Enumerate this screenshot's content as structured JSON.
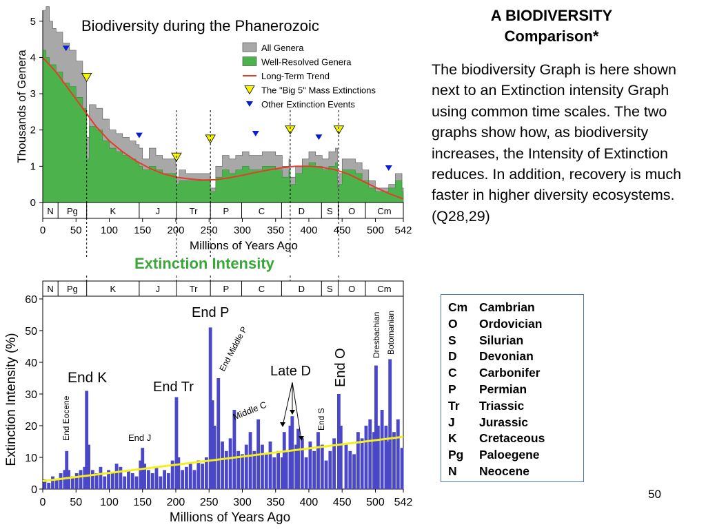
{
  "slide": {
    "title_line1": "A BIODIVERSITY",
    "title_line2": "Comparison*",
    "body": "The biodiversity Graph is here shown next to an Extinction intensity Graph using common time scales.  The two graphs show how, as biodiversity increases, the Intensity of Extinction reduces.  In addition, recovery is much faster in higher diversity ecosystems. (Q28,29)",
    "page_number": "50",
    "extinction_title": "Extinction Intensity"
  },
  "period_key": [
    {
      "abbr": "Cm",
      "name": "Cambrian"
    },
    {
      "abbr": "O",
      "name": "Ordovician"
    },
    {
      "abbr": "S",
      "name": "Silurian"
    },
    {
      "abbr": "D",
      "name": "Devonian"
    },
    {
      "abbr": "C",
      "name": "Carbonifer"
    },
    {
      "abbr": "P",
      "name": "Permian"
    },
    {
      "abbr": "Tr",
      "name": "Triassic"
    },
    {
      "abbr": "J",
      "name": "Jurassic"
    },
    {
      "abbr": "K",
      "name": "Cretaceous"
    },
    {
      "abbr": "Pg",
      "name": "Paloegene"
    },
    {
      "abbr": "N",
      "name": "Neocene"
    }
  ],
  "chart_data": [
    {
      "type": "area",
      "title": "Biodiversity during the Phanerozoic",
      "xlabel": "Millions of Years Ago",
      "ylabel": "Thousands of Genera",
      "xlim": [
        0,
        542
      ],
      "ylim": [
        0,
        5.3
      ],
      "x_reversed": false,
      "xticks": [
        0,
        50,
        100,
        150,
        200,
        250,
        300,
        350,
        400,
        450,
        500,
        542
      ],
      "yticks": [
        0,
        1,
        2,
        3,
        4,
        5
      ],
      "periods": [
        {
          "label": "N",
          "start": 0,
          "end": 23
        },
        {
          "label": "Pg",
          "start": 23,
          "end": 66
        },
        {
          "label": "K",
          "start": 66,
          "end": 145
        },
        {
          "label": "J",
          "start": 145,
          "end": 201
        },
        {
          "label": "Tr",
          "start": 201,
          "end": 252
        },
        {
          "label": "P",
          "start": 252,
          "end": 299
        },
        {
          "label": "C",
          "start": 299,
          "end": 359
        },
        {
          "label": "D",
          "start": 359,
          "end": 419
        },
        {
          "label": "S",
          "start": 419,
          "end": 444
        },
        {
          "label": "O",
          "start": 444,
          "end": 485
        },
        {
          "label": "Cm",
          "start": 485,
          "end": 542
        }
      ],
      "legend_position": "top-right",
      "colors": {
        "all": "#a8a8a8",
        "well": "#4cb34c",
        "trend": "#e83a2a",
        "big5": "#f5f500",
        "other": "#0a1ecf"
      },
      "series": [
        {
          "name": "All Genera",
          "x": [
            0,
            5,
            10,
            15,
            20,
            30,
            40,
            50,
            60,
            65,
            66,
            70,
            80,
            90,
            100,
            110,
            120,
            130,
            140,
            145,
            150,
            160,
            170,
            180,
            190,
            200,
            201,
            205,
            215,
            230,
            250,
            252,
            260,
            270,
            280,
            290,
            300,
            310,
            330,
            350,
            360,
            370,
            372,
            380,
            390,
            400,
            410,
            420,
            430,
            440,
            443,
            445,
            450,
            460,
            470,
            480,
            490,
            500,
            510,
            520,
            530,
            540,
            542
          ],
          "values": [
            5.3,
            5.4,
            5.0,
            4.8,
            4.7,
            4.4,
            4.2,
            3.9,
            3.5,
            3.4,
            1.8,
            2.7,
            2.6,
            2.3,
            2.0,
            1.9,
            1.8,
            1.7,
            1.6,
            1.5,
            1.2,
            1.5,
            1.3,
            1.2,
            1.2,
            1.0,
            0.7,
            0.9,
            0.8,
            0.8,
            0.8,
            0.4,
            1.0,
            1.3,
            1.2,
            1.3,
            1.4,
            1.3,
            1.4,
            1.3,
            1.0,
            1.2,
            0.7,
            1.0,
            1.2,
            1.4,
            1.3,
            1.2,
            1.4,
            1.5,
            0.6,
            0.8,
            1.2,
            1.2,
            1.1,
            0.9,
            0.6,
            0.4,
            0.4,
            0.5,
            0.8,
            0.4,
            0.3
          ]
        },
        {
          "name": "Well-Resolved Genera",
          "x": [
            0,
            5,
            10,
            20,
            30,
            40,
            50,
            60,
            65,
            66,
            70,
            80,
            90,
            100,
            110,
            120,
            130,
            140,
            145,
            150,
            160,
            170,
            180,
            190,
            200,
            201,
            205,
            215,
            230,
            250,
            252,
            260,
            270,
            280,
            290,
            300,
            310,
            330,
            350,
            360,
            370,
            372,
            380,
            390,
            400,
            410,
            420,
            430,
            440,
            443,
            445,
            450,
            460,
            470,
            480,
            490,
            500,
            510,
            520,
            530,
            540,
            542
          ],
          "values": [
            4.2,
            4.0,
            3.8,
            3.6,
            3.3,
            3.2,
            2.9,
            2.6,
            2.4,
            1.2,
            2.1,
            2.0,
            1.7,
            1.5,
            1.4,
            1.3,
            1.2,
            1.1,
            1.0,
            0.9,
            1.0,
            0.9,
            0.8,
            0.8,
            0.7,
            0.5,
            0.6,
            0.6,
            0.6,
            0.6,
            0.3,
            0.7,
            0.9,
            0.8,
            0.9,
            1.0,
            0.9,
            1.0,
            0.9,
            0.7,
            0.9,
            0.5,
            0.8,
            1.0,
            1.1,
            1.0,
            0.9,
            1.0,
            1.1,
            0.4,
            0.5,
            0.9,
            0.9,
            0.8,
            0.6,
            0.4,
            0.3,
            0.3,
            0.4,
            0.6,
            0.3,
            0.2
          ]
        },
        {
          "name": "Long-Term Trend",
          "x": [
            0,
            20,
            40,
            60,
            80,
            100,
            120,
            140,
            160,
            180,
            200,
            220,
            240,
            260,
            280,
            300,
            320,
            340,
            360,
            380,
            400,
            420,
            440,
            460,
            480,
            500,
            520,
            542
          ],
          "values": [
            4.0,
            3.6,
            3.1,
            2.6,
            2.1,
            1.7,
            1.4,
            1.15,
            0.95,
            0.8,
            0.7,
            0.65,
            0.62,
            0.63,
            0.68,
            0.75,
            0.83,
            0.9,
            0.96,
            1.0,
            1.0,
            0.97,
            0.9,
            0.78,
            0.6,
            0.42,
            0.25,
            0.1
          ]
        }
      ],
      "markers": [
        {
          "name": "The \"Big 5\" Mass Extinctions",
          "x": [
            66,
            201,
            252,
            372,
            445
          ],
          "y": [
            3.45,
            1.25,
            1.75,
            2.0,
            2.0
          ]
        },
        {
          "name": "Other Extinction Events",
          "x": [
            35,
            145,
            320,
            415,
            520
          ],
          "y": [
            4.25,
            1.85,
            1.9,
            1.8,
            0.95
          ]
        }
      ]
    },
    {
      "type": "bar",
      "xlabel": "Millions of Years Ago",
      "ylabel": "Extinction Intensity (%)",
      "xlim": [
        0,
        542
      ],
      "ylim": [
        0,
        60
      ],
      "xticks": [
        0,
        50,
        100,
        150,
        200,
        250,
        300,
        350,
        400,
        450,
        500,
        542
      ],
      "yticks": [
        0,
        10,
        20,
        30,
        40,
        50,
        60
      ],
      "colors": {
        "bars": "#4a47c8",
        "trend": "#f5f01a"
      },
      "series": [
        {
          "name": "Extinction Intensity",
          "x": [
            3,
            9,
            15,
            21,
            27,
            33,
            36,
            39,
            45,
            51,
            57,
            63,
            66,
            69,
            75,
            81,
            87,
            93,
            99,
            105,
            111,
            117,
            123,
            129,
            135,
            141,
            147,
            150,
            153,
            159,
            165,
            171,
            177,
            183,
            189,
            195,
            201,
            204,
            210,
            216,
            222,
            228,
            234,
            240,
            246,
            252,
            255,
            258,
            264,
            270,
            276,
            282,
            288,
            294,
            300,
            306,
            312,
            318,
            324,
            330,
            336,
            342,
            348,
            354,
            360,
            363,
            366,
            372,
            375,
            381,
            384,
            390,
            396,
            402,
            408,
            414,
            420,
            426,
            432,
            438,
            445,
            448,
            456,
            462,
            468,
            474,
            480,
            486,
            492,
            498,
            501,
            504,
            510,
            516,
            519,
            522,
            528,
            534,
            540
          ],
          "values": [
            3,
            2,
            4,
            3,
            5,
            6,
            12,
            6,
            4,
            5,
            6,
            7,
            31,
            14,
            6,
            5,
            7,
            4,
            6,
            5,
            8,
            7,
            4,
            6,
            5,
            4,
            9,
            13,
            8,
            6,
            5,
            7,
            4,
            6,
            5,
            9,
            29,
            10,
            6,
            7,
            8,
            6,
            9,
            8,
            10,
            51,
            28,
            20,
            35,
            15,
            12,
            16,
            25,
            12,
            11,
            14,
            18,
            12,
            22,
            14,
            11,
            15,
            10,
            12,
            10,
            18,
            12,
            20,
            23,
            14,
            19,
            16,
            10,
            15,
            12,
            18,
            14,
            9,
            12,
            16,
            30,
            20,
            14,
            12,
            11,
            18,
            16,
            20,
            22,
            18,
            39,
            20,
            25,
            20,
            15,
            41,
            18,
            22,
            13
          ]
        },
        {
          "name": "Trend",
          "x": [
            0,
            542
          ],
          "values": [
            2.5,
            16.5
          ]
        }
      ],
      "periods": [
        {
          "label": "N",
          "start": 0,
          "end": 23
        },
        {
          "label": "Pg",
          "start": 23,
          "end": 66
        },
        {
          "label": "K",
          "start": 66,
          "end": 145
        },
        {
          "label": "J",
          "start": 145,
          "end": 201
        },
        {
          "label": "Tr",
          "start": 201,
          "end": 252
        },
        {
          "label": "P",
          "start": 252,
          "end": 299
        },
        {
          "label": "C",
          "start": 299,
          "end": 359
        },
        {
          "label": "D",
          "start": 359,
          "end": 419
        },
        {
          "label": "S",
          "start": 419,
          "end": 444
        },
        {
          "label": "O",
          "start": 444,
          "end": 485
        },
        {
          "label": "Cm",
          "start": 485,
          "end": 542
        }
      ],
      "annotations": [
        {
          "text": "End K",
          "x": 66,
          "rotate": false,
          "size": "large"
        },
        {
          "text": "End Tr",
          "x": 201,
          "rotate": false,
          "size": "large"
        },
        {
          "text": "End P",
          "x": 252,
          "rotate": false,
          "size": "large"
        },
        {
          "text": "End O",
          "x": 445,
          "rotate": true,
          "size": "large"
        },
        {
          "text": "Late D",
          "x": 372,
          "rotate": false,
          "size": "large"
        },
        {
          "text": "End Eocene",
          "x": 36,
          "rotate": true,
          "size": "small"
        },
        {
          "text": "End J",
          "x": 150,
          "rotate": false,
          "size": "small"
        },
        {
          "text": "End Middle P",
          "x": 264,
          "rotate": true,
          "size": "small"
        },
        {
          "text": "Middle C",
          "x": 330,
          "rotate": false,
          "size": "small"
        },
        {
          "text": "End S",
          "x": 420,
          "rotate": true,
          "size": "small"
        },
        {
          "text": "Dresbachian",
          "x": 501,
          "rotate": true,
          "size": "small"
        },
        {
          "text": "Botomanian",
          "x": 522,
          "rotate": true,
          "size": "small"
        }
      ]
    }
  ]
}
